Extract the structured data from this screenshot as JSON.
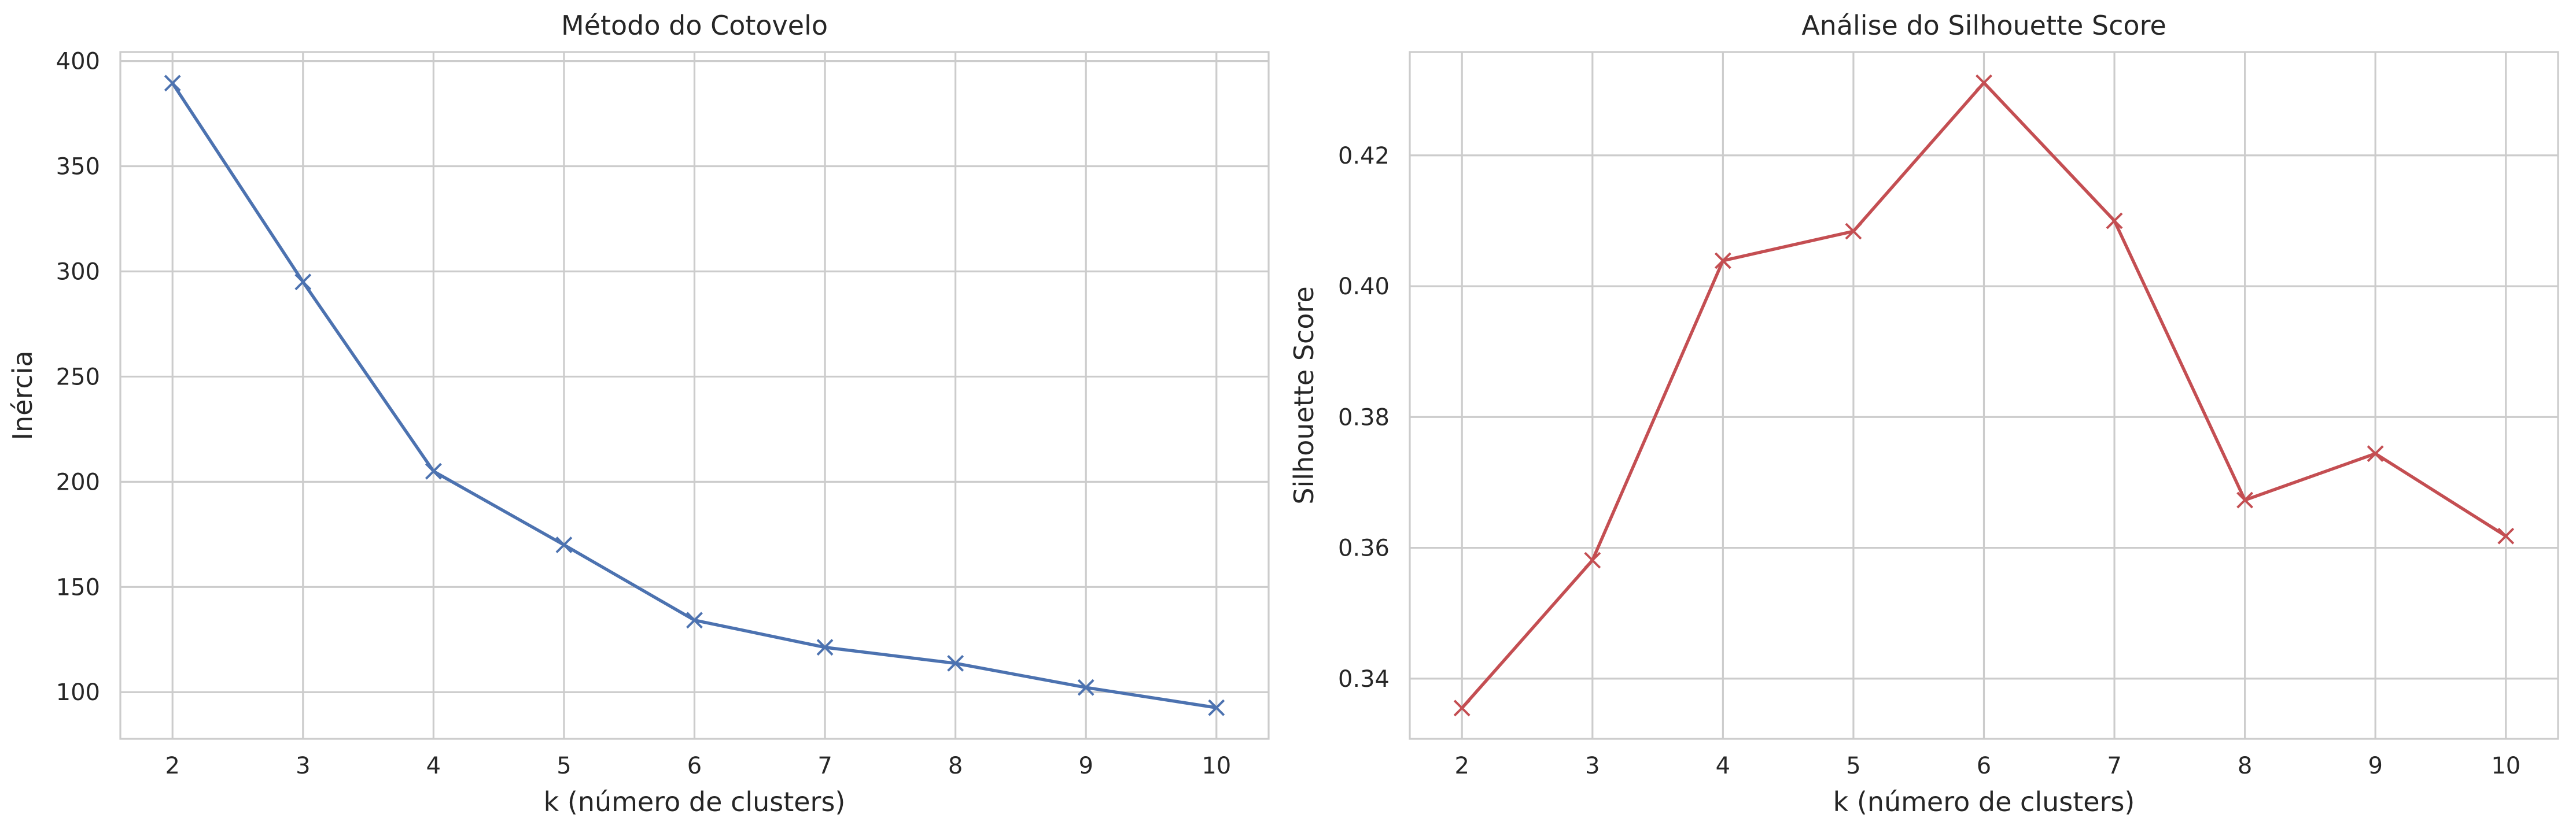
{
  "chart_data": [
    {
      "type": "line",
      "title": "Método do Cotovelo",
      "xlabel": "k (número de clusters)",
      "ylabel": "Inércia",
      "x": [
        2,
        3,
        4,
        5,
        6,
        7,
        8,
        9,
        10
      ],
      "series": [
        {
          "values": [
            389.5,
            295.0,
            205.0,
            170.0,
            134.2,
            121.3,
            113.7,
            102.2,
            92.6
          ],
          "color": "#4c72b0",
          "marker": "x"
        }
      ],
      "xticks": [
        "2",
        "3",
        "4",
        "5",
        "6",
        "7",
        "8",
        "9",
        "10"
      ],
      "yticks": [
        "100",
        "150",
        "200",
        "250",
        "300",
        "350",
        "400"
      ],
      "xlim": [
        1.6,
        10.4
      ],
      "ylim": [
        77.8,
        404.3
      ],
      "grid": true
    },
    {
      "type": "line",
      "title": "Análise do Silhouette Score",
      "xlabel": "k (número de clusters)",
      "ylabel": "Silhouette Score",
      "x": [
        2,
        3,
        4,
        5,
        6,
        7,
        8,
        9,
        10
      ],
      "series": [
        {
          "values": [
            0.3355,
            0.3581,
            0.4039,
            0.4084,
            0.4311,
            0.41,
            0.3673,
            0.3744,
            0.3618
          ],
          "color": "#c44e52",
          "marker": "x"
        }
      ],
      "xticks": [
        "2",
        "3",
        "4",
        "5",
        "6",
        "7",
        "8",
        "9",
        "10"
      ],
      "yticks": [
        "0.34",
        "0.36",
        "0.38",
        "0.40",
        "0.42"
      ],
      "xlim": [
        1.6,
        10.4
      ],
      "ylim": [
        0.3308,
        0.4358
      ],
      "grid": true
    }
  ]
}
